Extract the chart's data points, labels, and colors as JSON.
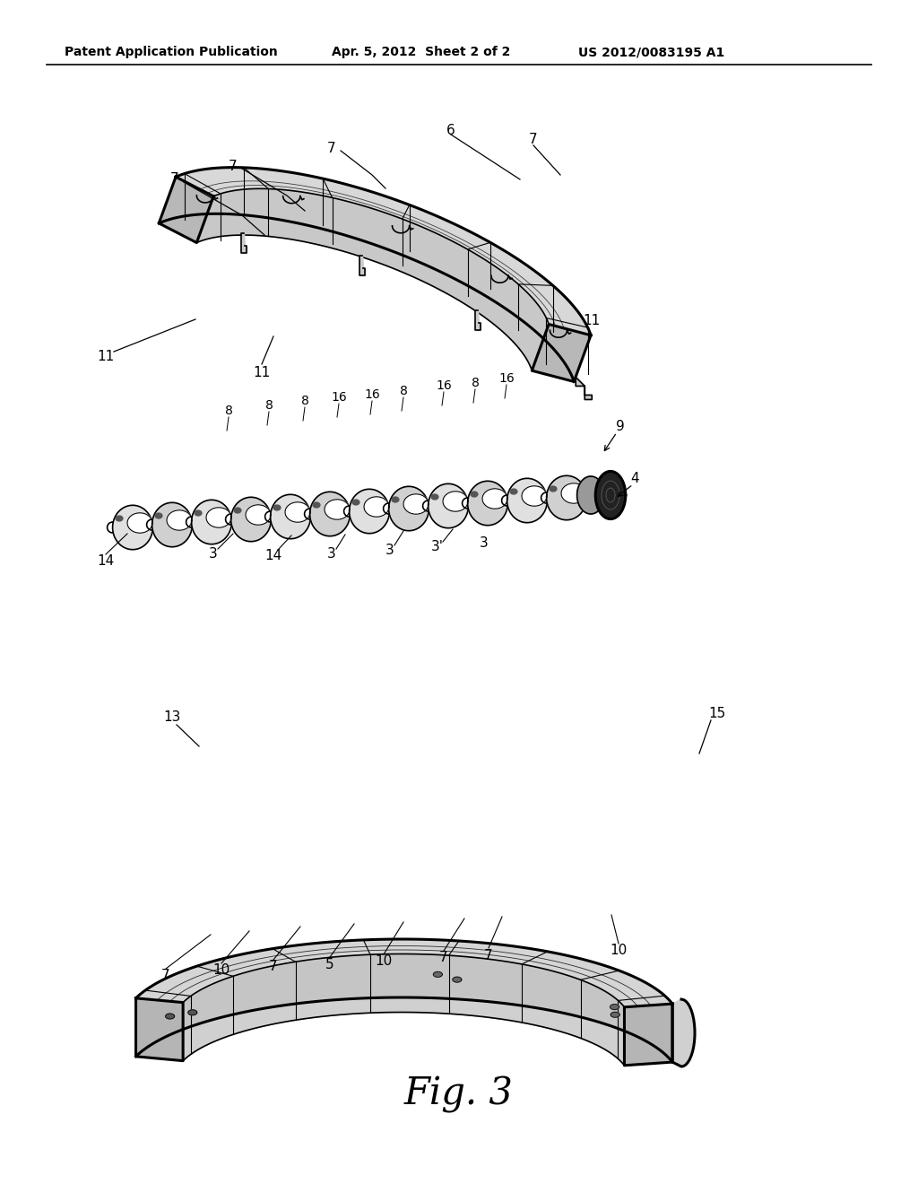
{
  "bg_color": "#ffffff",
  "header_left": "Patent Application Publication",
  "header_center": "Apr. 5, 2012  Sheet 2 of 2",
  "header_right": "US 2012/0083195 A1",
  "fig_label": "Fig. 3"
}
